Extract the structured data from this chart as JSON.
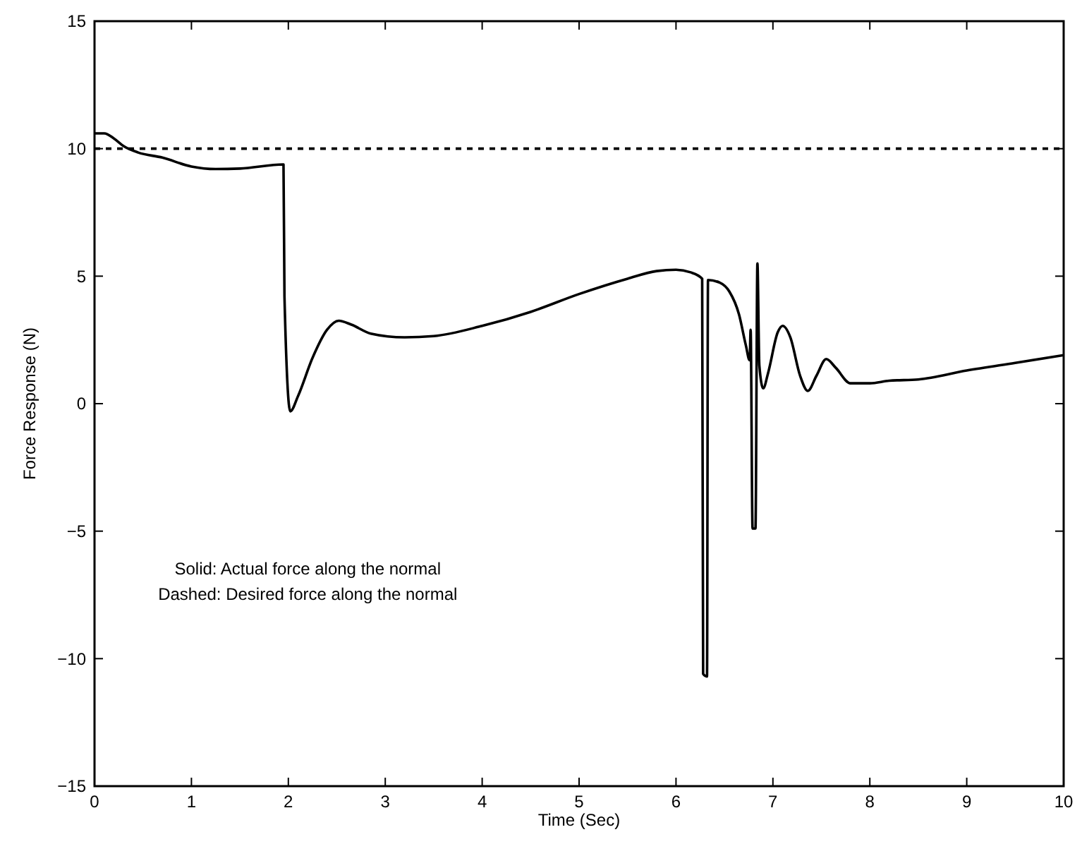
{
  "chart_data": {
    "type": "line",
    "xlabel": "Time (Sec)",
    "ylabel": "Force Response (N)",
    "xlim": [
      0,
      10
    ],
    "ylim": [
      -15,
      15
    ],
    "xticks": [
      0,
      1,
      2,
      3,
      4,
      5,
      6,
      7,
      8,
      9,
      10
    ],
    "yticks": [
      {
        "value": -15,
        "label": "−15"
      },
      {
        "value": -10,
        "label": "−10"
      },
      {
        "value": -5,
        "label": "−5"
      },
      0,
      5,
      10,
      15
    ],
    "grid": false,
    "marker": "none",
    "line_style": "solid",
    "series": [
      {
        "color": "#000000",
        "x": [
          0,
          0.1,
          0.2,
          0.3,
          0.45,
          0.7,
          1.0,
          1.25,
          1.5,
          1.95,
          1.96,
          2.02,
          2.1,
          2.25,
          2.4,
          2.52,
          2.65,
          2.85,
          3.2,
          3.5,
          4.0,
          4.5,
          5.0,
          5.5,
          5.8,
          6.0,
          6.15,
          6.27,
          6.28,
          6.32,
          6.33,
          6.45,
          6.55,
          6.65,
          6.72,
          6.76,
          6.77,
          6.79,
          6.82,
          6.84,
          6.86,
          6.9,
          6.95,
          7.05,
          7.1,
          7.18,
          7.28,
          7.36,
          7.45,
          7.55,
          7.65,
          7.8,
          8.0,
          8.2,
          8.5,
          9.0,
          9.5,
          10
        ],
        "values": [
          10.6,
          10.6,
          10.4,
          10.1,
          9.85,
          9.65,
          9.3,
          9.2,
          9.22,
          9.38,
          4.2,
          -0.3,
          0.3,
          1.8,
          2.9,
          3.25,
          3.1,
          2.75,
          2.6,
          2.65,
          3.05,
          3.6,
          4.3,
          4.9,
          5.2,
          5.25,
          5.15,
          4.9,
          -10.6,
          -10.7,
          4.85,
          4.75,
          4.4,
          3.5,
          2.3,
          1.7,
          2.9,
          -4.9,
          -4.9,
          5.5,
          1.5,
          0.6,
          1.2,
          2.8,
          3.05,
          2.6,
          1.1,
          0.5,
          1.1,
          1.75,
          1.4,
          0.8,
          0.8,
          0.9,
          0.95,
          1.3,
          1.6,
          1.9
        ]
      }
    ],
    "ref_lines": [
      {
        "axis": "y",
        "value": 10,
        "line_style": "dashed",
        "color": "#000000"
      }
    ],
    "annotations": [
      "Solid: Actual force along the normal",
      "Dashed: Desired force along the normal"
    ]
  }
}
